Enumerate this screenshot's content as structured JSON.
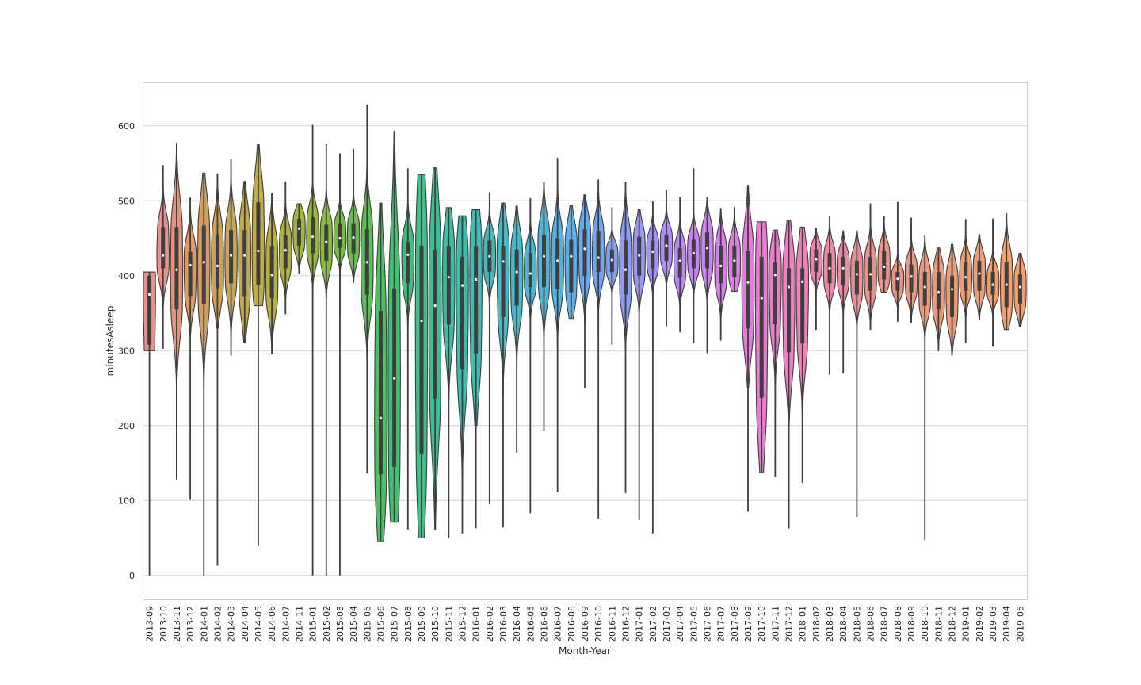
{
  "chart_data": {
    "type": "violin",
    "xlabel": "Month-Year",
    "ylabel": "minutesAsleep",
    "ylim": [
      -32,
      658
    ],
    "yticks": [
      0,
      100,
      200,
      300,
      400,
      500,
      600
    ],
    "grid": true,
    "categories": [
      "2013-09",
      "2013-10",
      "2013-11",
      "2013-12",
      "2014-01",
      "2014-02",
      "2014-03",
      "2014-04",
      "2014-05",
      "2014-06",
      "2014-07",
      "2014-11",
      "2015-01",
      "2015-02",
      "2015-03",
      "2015-04",
      "2015-05",
      "2015-06",
      "2015-07",
      "2015-08",
      "2015-09",
      "2015-10",
      "2015-11",
      "2015-12",
      "2016-01",
      "2016-02",
      "2016-03",
      "2016-04",
      "2016-05",
      "2016-06",
      "2016-07",
      "2016-08",
      "2016-09",
      "2016-10",
      "2016-11",
      "2016-12",
      "2017-01",
      "2017-02",
      "2017-03",
      "2017-04",
      "2017-05",
      "2017-06",
      "2017-07",
      "2017-08",
      "2017-09",
      "2017-10",
      "2017-11",
      "2017-12",
      "2018-01",
      "2018-02",
      "2018-03",
      "2018-04",
      "2018-05",
      "2018-06",
      "2018-07",
      "2018-08",
      "2018-09",
      "2018-10",
      "2018-11",
      "2018-12",
      "2019-01",
      "2019-02",
      "2019-03",
      "2019-04",
      "2019-05"
    ],
    "colors": [
      "#e9928c",
      "#e9938f",
      "#e39478",
      "#dc9a69",
      "#d59e5f",
      "#cfa259",
      "#c9a652",
      "#c3a94d",
      "#bdac48",
      "#b6af43",
      "#aeb241",
      "#a2b53e",
      "#95b83d",
      "#88ba3e",
      "#79bc43",
      "#69bd4c",
      "#5abf56",
      "#4cc063",
      "#42c071",
      "#3dbf7f",
      "#3bbf8b",
      "#3cbf97",
      "#3dbea2",
      "#3fbdac",
      "#41bcb5",
      "#43bbbd",
      "#45bac5",
      "#47b9cc",
      "#4ab7d3",
      "#4eb5da",
      "#54b2e1",
      "#5cafe7",
      "#67abec",
      "#73a6f0",
      "#80a1f3",
      "#8c9cf5",
      "#9997f6",
      "#a592f7",
      "#b08df6",
      "#bb88f4",
      "#c584f1",
      "#ce81ed",
      "#d67fe8",
      "#dd7ee2",
      "#e37ddb",
      "#e87dd3",
      "#eb7ecb",
      "#ed80c2",
      "#ee82b9",
      "#ee85b0",
      "#ed88a7",
      "#eb8c9e",
      "#e98f96",
      "#e8928f",
      "#e89489",
      "#e99684",
      "#ea9880",
      "#eb997c",
      "#ec9a79",
      "#ed9b76",
      "#ee9c74",
      "#ef9d72",
      "#f09e70",
      "#f19f6f",
      "#f2a06e"
    ],
    "series": [
      {
        "min": 0,
        "q1": 308,
        "median": 375,
        "q3": 400,
        "max": 405,
        "top": 405,
        "bot": 300
      },
      {
        "min": 303,
        "q1": 410,
        "median": 427,
        "q3": 465,
        "max": 547,
        "top": 547,
        "bot": 303
      },
      {
        "min": 128,
        "q1": 355,
        "median": 408,
        "q3": 465,
        "max": 577,
        "top": 577,
        "bot": 128
      },
      {
        "min": 101,
        "q1": 373,
        "median": 414,
        "q3": 432,
        "max": 504,
        "top": 504,
        "bot": 320
      },
      {
        "min": 0,
        "q1": 362,
        "median": 418,
        "q3": 467,
        "max": 537,
        "top": 537,
        "bot": 250
      },
      {
        "min": 13,
        "q1": 383,
        "median": 413,
        "q3": 455,
        "max": 536,
        "top": 536,
        "bot": 330
      },
      {
        "min": 294,
        "q1": 390,
        "median": 427,
        "q3": 461,
        "max": 555,
        "top": 555,
        "bot": 294
      },
      {
        "min": 311,
        "q1": 373,
        "median": 427,
        "q3": 461,
        "max": 526,
        "top": 526,
        "bot": 311
      },
      {
        "min": 39,
        "q1": 388,
        "median": 433,
        "q3": 498,
        "max": 575,
        "top": 575,
        "bot": 360
      },
      {
        "min": 296,
        "q1": 370,
        "median": 401,
        "q3": 440,
        "max": 510,
        "top": 510,
        "bot": 296
      },
      {
        "min": 349,
        "q1": 410,
        "median": 434,
        "q3": 454,
        "max": 525,
        "top": 525,
        "bot": 349
      },
      {
        "min": 403,
        "q1": 440,
        "median": 463,
        "q3": 476,
        "max": 496,
        "top": 496,
        "bot": 403
      },
      {
        "min": 0,
        "q1": 430,
        "median": 452,
        "q3": 478,
        "max": 601,
        "top": 601,
        "bot": 330
      },
      {
        "min": 0,
        "q1": 420,
        "median": 445,
        "q3": 468,
        "max": 576,
        "top": 576,
        "bot": 350
      },
      {
        "min": 0,
        "q1": 437,
        "median": 450,
        "q3": 470,
        "max": 563,
        "top": 563,
        "bot": 345
      },
      {
        "min": 391,
        "q1": 430,
        "median": 451,
        "q3": 470,
        "max": 569,
        "top": 569,
        "bot": 391
      },
      {
        "min": 136,
        "q1": 375,
        "median": 418,
        "q3": 462,
        "max": 628,
        "top": 628,
        "bot": 260
      },
      {
        "min": 45,
        "q1": 135,
        "median": 210,
        "q3": 353,
        "max": 497,
        "top": 497,
        "bot": 45
      },
      {
        "min": 71,
        "q1": 145,
        "median": 263,
        "q3": 383,
        "max": 593,
        "top": 593,
        "bot": 71
      },
      {
        "min": 61,
        "q1": 390,
        "median": 428,
        "q3": 445,
        "max": 543,
        "top": 543,
        "bot": 250
      },
      {
        "min": 50,
        "q1": 162,
        "median": 340,
        "q3": 440,
        "max": 535,
        "top": 535,
        "bot": 50
      },
      {
        "min": 61,
        "q1": 236,
        "median": 360,
        "q3": 435,
        "max": 544,
        "top": 544,
        "bot": 61
      },
      {
        "min": 50,
        "q1": 335,
        "median": 398,
        "q3": 440,
        "max": 491,
        "top": 491,
        "bot": 180
      },
      {
        "min": 56,
        "q1": 275,
        "median": 387,
        "q3": 425,
        "max": 480,
        "top": 480,
        "bot": 100
      },
      {
        "min": 63,
        "q1": 296,
        "median": 395,
        "q3": 440,
        "max": 488,
        "top": 488,
        "bot": 200
      },
      {
        "min": 95,
        "q1": 405,
        "median": 426,
        "q3": 447,
        "max": 511,
        "top": 511,
        "bot": 300
      },
      {
        "min": 64,
        "q1": 345,
        "median": 419,
        "q3": 440,
        "max": 497,
        "top": 497,
        "bot": 240
      },
      {
        "min": 164,
        "q1": 360,
        "median": 405,
        "q3": 435,
        "max": 493,
        "top": 493,
        "bot": 280
      },
      {
        "min": 83,
        "q1": 385,
        "median": 403,
        "q3": 430,
        "max": 503,
        "top": 503,
        "bot": 300
      },
      {
        "min": 193,
        "q1": 385,
        "median": 426,
        "q3": 455,
        "max": 525,
        "top": 525,
        "bot": 320
      },
      {
        "min": 111,
        "q1": 382,
        "median": 420,
        "q3": 450,
        "max": 557,
        "top": 557,
        "bot": 300
      },
      {
        "min": 343,
        "q1": 378,
        "median": 426,
        "q3": 448,
        "max": 494,
        "top": 494,
        "bot": 343
      },
      {
        "min": 250,
        "q1": 400,
        "median": 436,
        "q3": 462,
        "max": 508,
        "top": 508,
        "bot": 340
      },
      {
        "min": 76,
        "q1": 405,
        "median": 424,
        "q3": 460,
        "max": 528,
        "top": 528,
        "bot": 320
      },
      {
        "min": 308,
        "q1": 405,
        "median": 421,
        "q3": 435,
        "max": 491,
        "top": 491,
        "bot": 345
      },
      {
        "min": 110,
        "q1": 375,
        "median": 408,
        "q3": 447,
        "max": 525,
        "top": 525,
        "bot": 300
      },
      {
        "min": 74,
        "q1": 400,
        "median": 427,
        "q3": 452,
        "max": 488,
        "top": 488,
        "bot": 310
      },
      {
        "min": 56,
        "q1": 410,
        "median": 432,
        "q3": 447,
        "max": 499,
        "top": 499,
        "bot": 300
      },
      {
        "min": 333,
        "q1": 420,
        "median": 440,
        "q3": 455,
        "max": 514,
        "top": 514,
        "bot": 333
      },
      {
        "min": 325,
        "q1": 397,
        "median": 420,
        "q3": 437,
        "max": 505,
        "top": 505,
        "bot": 325
      },
      {
        "min": 311,
        "q1": 410,
        "median": 430,
        "q3": 448,
        "max": 543,
        "top": 543,
        "bot": 311
      },
      {
        "min": 297,
        "q1": 410,
        "median": 437,
        "q3": 458,
        "max": 505,
        "top": 505,
        "bot": 297
      },
      {
        "min": 314,
        "q1": 390,
        "median": 413,
        "q3": 440,
        "max": 490,
        "top": 490,
        "bot": 314
      },
      {
        "min": 379,
        "q1": 398,
        "median": 420,
        "q3": 440,
        "max": 491,
        "top": 491,
        "bot": 379
      },
      {
        "min": 85,
        "q1": 330,
        "median": 391,
        "q3": 433,
        "max": 521,
        "top": 521,
        "bot": 250
      },
      {
        "min": 137,
        "q1": 237,
        "median": 370,
        "q3": 425,
        "max": 472,
        "top": 472,
        "bot": 137
      },
      {
        "min": 131,
        "q1": 335,
        "median": 401,
        "q3": 418,
        "max": 461,
        "top": 461,
        "bot": 225
      },
      {
        "min": 63,
        "q1": 298,
        "median": 385,
        "q3": 410,
        "max": 474,
        "top": 474,
        "bot": 63
      },
      {
        "min": 124,
        "q1": 310,
        "median": 392,
        "q3": 410,
        "max": 465,
        "top": 465,
        "bot": 124
      },
      {
        "min": 328,
        "q1": 405,
        "median": 422,
        "q3": 435,
        "max": 463,
        "top": 463,
        "bot": 328
      },
      {
        "min": 268,
        "q1": 390,
        "median": 410,
        "q3": 430,
        "max": 479,
        "top": 479,
        "bot": 268
      },
      {
        "min": 270,
        "q1": 387,
        "median": 410,
        "q3": 425,
        "max": 460,
        "top": 460,
        "bot": 270
      },
      {
        "min": 78,
        "q1": 375,
        "median": 402,
        "q3": 420,
        "max": 460,
        "top": 460,
        "bot": 300
      },
      {
        "min": 328,
        "q1": 380,
        "median": 402,
        "q3": 425,
        "max": 496,
        "top": 496,
        "bot": 328
      },
      {
        "min": 378,
        "q1": 395,
        "median": 412,
        "q3": 433,
        "max": 479,
        "top": 479,
        "bot": 378
      },
      {
        "min": 339,
        "q1": 380,
        "median": 396,
        "q3": 405,
        "max": 498,
        "top": 498,
        "bot": 339
      },
      {
        "min": 337,
        "q1": 378,
        "median": 399,
        "q3": 415,
        "max": 477,
        "top": 477,
        "bot": 337
      },
      {
        "min": 47,
        "q1": 360,
        "median": 385,
        "q3": 405,
        "max": 453,
        "top": 453,
        "bot": 270
      },
      {
        "min": 300,
        "q1": 355,
        "median": 378,
        "q3": 405,
        "max": 437,
        "top": 437,
        "bot": 300
      },
      {
        "min": 294,
        "q1": 345,
        "median": 382,
        "q3": 400,
        "max": 442,
        "top": 442,
        "bot": 294
      },
      {
        "min": 311,
        "q1": 380,
        "median": 398,
        "q3": 418,
        "max": 475,
        "top": 475,
        "bot": 311
      },
      {
        "min": 341,
        "q1": 380,
        "median": 403,
        "q3": 420,
        "max": 455,
        "top": 455,
        "bot": 341
      },
      {
        "min": 306,
        "q1": 375,
        "median": 388,
        "q3": 405,
        "max": 476,
        "top": 476,
        "bot": 306
      },
      {
        "min": 328,
        "q1": 358,
        "median": 388,
        "q3": 418,
        "max": 483,
        "top": 483,
        "bot": 328
      },
      {
        "min": 332,
        "q1": 362,
        "median": 385,
        "q3": 402,
        "max": 430,
        "top": 430,
        "bot": 332
      }
    ]
  }
}
